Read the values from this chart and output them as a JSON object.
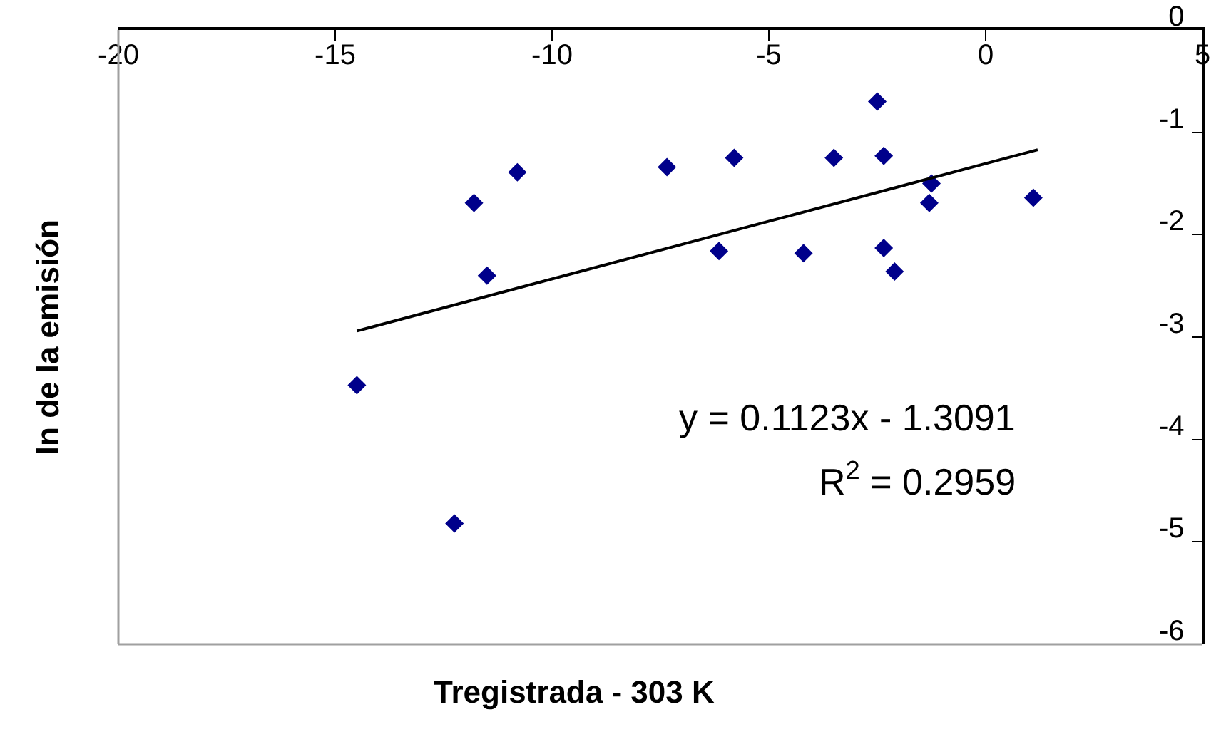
{
  "chart_data": {
    "type": "scatter",
    "xlabel": "Tregistrada - 303 K",
    "ylabel": "ln de la emisión",
    "xlim": [
      -20,
      5
    ],
    "xticks": [
      -20,
      -15,
      -10,
      -5,
      0,
      5
    ],
    "ylim": [
      -6,
      0
    ],
    "yticks": [
      0,
      -1,
      -2,
      -3,
      -4,
      -5,
      -6
    ],
    "grid": false,
    "marker": "diamond",
    "series": [
      {
        "color": "#00008b",
        "x": [
          -14.5,
          -12.25,
          -11.8,
          -11.5,
          -10.8,
          -7.35,
          -6.15,
          -5.8,
          -4.2,
          -3.5,
          -2.5,
          -2.35,
          -2.35,
          -2.1,
          -1.3,
          -1.25,
          1.1
        ],
        "values": [
          -3.47,
          -4.82,
          -1.69,
          -2.4,
          -1.39,
          -1.34,
          -2.16,
          -1.25,
          -2.18,
          -1.25,
          -0.7,
          -1.23,
          -2.13,
          -2.36,
          -1.69,
          -1.5,
          -1.64
        ]
      },
      {
        "type": "line",
        "color": "#000000",
        "marker": "none",
        "x": [
          -14.5,
          1.2
        ],
        "values": [
          -2.94,
          -1.17
        ]
      }
    ],
    "annotations": [
      "y = 0.1123x - 1.3091",
      "R$^{2}$ = 0.2959"
    ]
  }
}
